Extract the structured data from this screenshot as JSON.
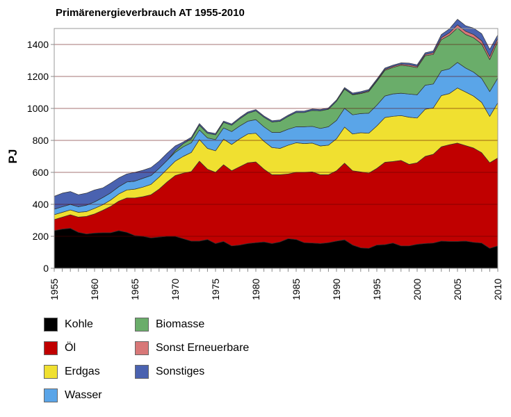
{
  "chart_data": {
    "type": "area",
    "stacked": true,
    "title": "Primärenergieverbrauch AT 1955-2010",
    "xlabel": "",
    "ylabel": "PJ",
    "xlim": [
      1955,
      2010
    ],
    "ylim": [
      0,
      1500
    ],
    "yticks": [
      0,
      200,
      400,
      600,
      800,
      1000,
      1200,
      1400
    ],
    "xticks": [
      1955,
      1960,
      1965,
      1970,
      1975,
      1980,
      1985,
      1990,
      1995,
      2000,
      2005,
      2010
    ],
    "grid": true,
    "legend_position": "bottom-left",
    "x": [
      1955,
      1956,
      1957,
      1958,
      1959,
      1960,
      1961,
      1962,
      1963,
      1964,
      1965,
      1966,
      1967,
      1968,
      1969,
      1970,
      1971,
      1972,
      1973,
      1974,
      1975,
      1976,
      1977,
      1978,
      1979,
      1980,
      1981,
      1982,
      1983,
      1984,
      1985,
      1986,
      1987,
      1988,
      1989,
      1990,
      1991,
      1992,
      1993,
      1994,
      1995,
      1996,
      1997,
      1998,
      1999,
      2000,
      2001,
      2002,
      2003,
      2004,
      2005,
      2006,
      2007,
      2008,
      2009,
      2010
    ],
    "series": [
      {
        "name": "Kohle",
        "color": "#000000",
        "values": [
          235,
          245,
          250,
          225,
          215,
          220,
          222,
          222,
          235,
          225,
          205,
          200,
          190,
          195,
          200,
          200,
          185,
          170,
          170,
          180,
          155,
          168,
          140,
          145,
          155,
          160,
          165,
          155,
          165,
          185,
          180,
          160,
          158,
          155,
          160,
          170,
          178,
          145,
          128,
          125,
          145,
          148,
          158,
          140,
          140,
          150,
          155,
          158,
          170,
          168,
          168,
          170,
          162,
          158,
          125,
          140
        ]
      },
      {
        "name": "Öl",
        "color": "#c00000",
        "values": [
          70,
          75,
          85,
          95,
          110,
          120,
          140,
          165,
          185,
          215,
          235,
          248,
          270,
          300,
          340,
          380,
          410,
          435,
          500,
          440,
          445,
          480,
          470,
          490,
          505,
          505,
          455,
          430,
          420,
          405,
          420,
          440,
          445,
          430,
          425,
          440,
          480,
          465,
          475,
          470,
          480,
          515,
          510,
          535,
          510,
          510,
          545,
          555,
          590,
          605,
          615,
          598,
          590,
          565,
          535,
          550
        ]
      },
      {
        "name": "Erdgas",
        "color": "#f0e030",
        "values": [
          30,
          30,
          30,
          30,
          30,
          35,
          35,
          40,
          45,
          50,
          55,
          60,
          65,
          75,
          80,
          90,
          105,
          120,
          135,
          130,
          135,
          160,
          165,
          175,
          180,
          180,
          175,
          170,
          165,
          180,
          185,
          180,
          180,
          180,
          185,
          200,
          225,
          230,
          245,
          250,
          265,
          280,
          283,
          280,
          295,
          280,
          295,
          290,
          320,
          320,
          345,
          335,
          325,
          315,
          290,
          345
        ]
      },
      {
        "name": "Wasser",
        "color": "#5aa5e8",
        "values": [
          35,
          35,
          35,
          35,
          40,
          40,
          45,
          45,
          45,
          50,
          50,
          55,
          55,
          55,
          55,
          55,
          60,
          60,
          60,
          65,
          70,
          70,
          80,
          80,
          80,
          85,
          90,
          95,
          100,
          100,
          100,
          105,
          105,
          110,
          115,
          115,
          118,
          120,
          120,
          125,
          130,
          135,
          140,
          140,
          145,
          145,
          150,
          150,
          155,
          155,
          160,
          150,
          150,
          150,
          155,
          155
        ]
      },
      {
        "name": "Biomasse",
        "color": "#6aad6a",
        "values": [
          0,
          0,
          0,
          0,
          0,
          0,
          0,
          0,
          0,
          0,
          0,
          0,
          0,
          0,
          0,
          10,
          20,
          25,
          30,
          30,
          30,
          35,
          40,
          45,
          50,
          55,
          60,
          65,
          70,
          80,
          90,
          90,
          100,
          110,
          110,
          120,
          120,
          125,
          125,
          135,
          150,
          160,
          165,
          175,
          175,
          170,
          185,
          185,
          195,
          210,
          215,
          210,
          215,
          215,
          200,
          230
        ]
      },
      {
        "name": "Sonst Erneuerbare",
        "color": "#d87878",
        "values": [
          0,
          0,
          0,
          0,
          0,
          0,
          0,
          0,
          0,
          0,
          0,
          0,
          0,
          0,
          0,
          0,
          0,
          0,
          0,
          0,
          0,
          0,
          0,
          0,
          0,
          0,
          0,
          0,
          0,
          0,
          0,
          0,
          0,
          0,
          0,
          0,
          2,
          3,
          4,
          5,
          5,
          6,
          7,
          7,
          8,
          8,
          8,
          10,
          12,
          15,
          20,
          20,
          20,
          20,
          20,
          20
        ]
      },
      {
        "name": "Sonstiges",
        "color": "#4a62b0",
        "values": [
          80,
          85,
          80,
          75,
          75,
          75,
          60,
          60,
          55,
          50,
          55,
          50,
          50,
          45,
          45,
          30,
          10,
          10,
          10,
          8,
          8,
          8,
          8,
          8,
          8,
          8,
          8,
          8,
          8,
          8,
          8,
          8,
          8,
          8,
          8,
          8,
          8,
          8,
          8,
          8,
          8,
          8,
          8,
          8,
          10,
          10,
          10,
          12,
          20,
          25,
          35,
          35,
          40,
          45,
          45,
          20
        ]
      }
    ]
  }
}
